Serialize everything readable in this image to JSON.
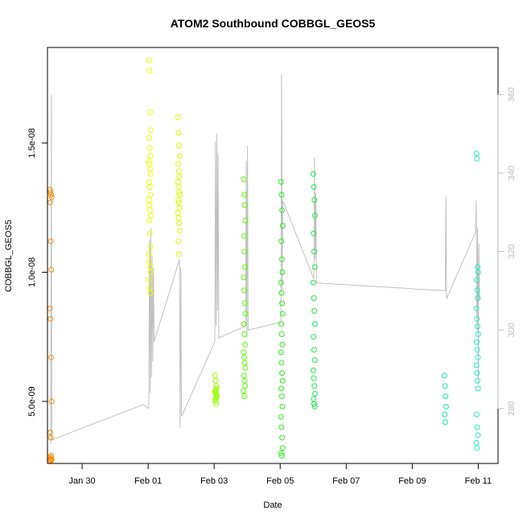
{
  "chart_data": {
    "type": "scatter",
    "title": "ATOM2 Southbound COBBGL_GEOS5",
    "xlabel": "Date",
    "ylabel": "COBBGL_GEOS5",
    "x_unit": "days since Jan 30",
    "xlim": [
      -1.05,
      12.6
    ],
    "ylim": [
      2.6e-09,
      1.87e-08
    ],
    "y2lim": [
      266,
      372
    ],
    "x_ticks": [
      {
        "value": 0,
        "label": "Jan 30"
      },
      {
        "value": 2,
        "label": "Feb 01"
      },
      {
        "value": 4,
        "label": "Feb 03"
      },
      {
        "value": 6,
        "label": "Feb 05"
      },
      {
        "value": 8,
        "label": "Feb 07"
      },
      {
        "value": 10,
        "label": "Feb 09"
      },
      {
        "value": 12,
        "label": "Feb 11"
      }
    ],
    "y_ticks": [
      {
        "value": 5e-09,
        "label": "5.0e-09"
      },
      {
        "value": 1e-08,
        "label": "1.0e-08"
      },
      {
        "value": 1.5e-08,
        "label": "1.5e-08"
      }
    ],
    "y2_ticks": [
      {
        "value": 280,
        "label": "280"
      },
      {
        "value": 300,
        "label": "300"
      },
      {
        "value": 320,
        "label": "320"
      },
      {
        "value": 340,
        "label": "340"
      },
      {
        "value": 360,
        "label": "360"
      }
    ],
    "clusters": [
      {
        "x": -0.95,
        "color": "#ff8c00",
        "y": [
          1.32e-08,
          1.31e-08,
          1.3e-08,
          1.29e-08,
          1.27e-08,
          1.12e-08,
          1.01e-08,
          8.6e-09,
          8.2e-09,
          6.7e-09,
          5e-09,
          3.8e-09,
          3.6e-09,
          2.9e-09,
          2.85e-09,
          2.8e-09,
          2.78e-09,
          2.75e-09,
          2.72e-09,
          2.7e-09
        ]
      },
      {
        "x": 2.05,
        "color": "#eaff00",
        "y": [
          1.82e-08,
          1.78e-08,
          1.62e-08,
          1.55e-08,
          1.52e-08,
          1.48e-08,
          1.45e-08,
          1.43e-08,
          1.42e-08,
          1.4e-08,
          1.38e-08,
          1.35e-08,
          1.33e-08,
          1.3e-08,
          1.28e-08,
          1.26e-08,
          1.24e-08,
          1.22e-08,
          1.2e-08,
          1.15e-08,
          1.1e-08,
          1.07e-08,
          1.04e-08,
          1.02e-08,
          1e-08,
          9.7e-09,
          9.4e-09,
          9.2e-09
        ]
      },
      {
        "x": 2.93,
        "color": "#d4ff00",
        "y": [
          1.6e-08,
          1.54e-08,
          1.49e-08,
          1.45e-08,
          1.42e-08,
          1.39e-08,
          1.37e-08,
          1.35e-08,
          1.33e-08,
          1.31e-08,
          1.3e-08,
          1.28e-08,
          1.27e-08,
          1.25e-08,
          1.23e-08,
          1.21e-08,
          1.19e-08,
          1.16e-08,
          1.12e-08,
          1.07e-08
        ]
      },
      {
        "x": 4.05,
        "color": "#9cff00",
        "y": [
          6e-09,
          5.8e-09,
          5.6e-09,
          5.5e-09,
          5.4e-09,
          5.3e-09,
          5.2e-09,
          5.1e-09,
          5e-09,
          4.9e-09,
          5.25e-09,
          5.35e-09,
          5.45e-09,
          5.15e-09
        ]
      },
      {
        "x": 4.92,
        "color": "#55ff00",
        "y": [
          1.36e-08,
          1.3e-08,
          1.26e-08,
          1.2e-08,
          1.14e-08,
          1.08e-08,
          1.02e-08,
          9.8e-09,
          9.3e-09,
          8.8e-09,
          8.4e-09,
          8e-09,
          7.6e-09,
          7.2e-09,
          6.9e-09,
          6.7e-09,
          6.5e-09,
          6.3e-09,
          6e-09,
          5.8e-09,
          5.6e-09,
          5.4e-09,
          5.2e-09
        ]
      },
      {
        "x": 6.05,
        "color": "#2bef1a",
        "y": [
          1.35e-08,
          1.3e-08,
          1.24e-08,
          1.18e-08,
          1.12e-08,
          1.05e-08,
          1e-08,
          9.6e-09,
          9.2e-09,
          8.8e-09,
          8.4e-09,
          8e-09,
          7.6e-09,
          7.2e-09,
          6.9e-09,
          6.5e-09,
          6.1e-09,
          5.8e-09,
          5.5e-09,
          5.2e-09,
          4.8e-09,
          4.4e-09,
          4e-09,
          3.6e-09,
          3.2e-09,
          3e-09,
          2.9e-09
        ]
      },
      {
        "x": 7.03,
        "color": "#1ee84a",
        "y": [
          1.38e-08,
          1.33e-08,
          1.28e-08,
          1.22e-08,
          1.15e-08,
          1.08e-08,
          1.02e-08,
          9.6e-09,
          9e-09,
          8.5e-09,
          8e-09,
          7.5e-09,
          7e-09,
          6.6e-09,
          6.2e-09,
          5.9e-09,
          5.6e-09,
          5.3e-09,
          5.1e-09,
          4.9e-09,
          4.8e-09
        ]
      },
      {
        "x": 11.0,
        "color": "#12e8a0",
        "y": [
          6e-09,
          5.6e-09,
          5.2e-09,
          4.8e-09,
          4.5e-09,
          4.2e-09
        ]
      },
      {
        "x": 11.97,
        "color": "#22f0c0",
        "y": [
          1.46e-08,
          1.44e-08,
          1.02e-08,
          1e-08,
          9.7e-09,
          9.3e-09,
          9e-09,
          8.6e-09,
          8.2e-09,
          7.9e-09,
          7.6e-09,
          7.3e-09,
          7e-09,
          6.7e-09,
          6.4e-09,
          6.1e-09,
          5.8e-09,
          5.5e-09,
          4.5e-09,
          4e-09,
          3.7e-09,
          3.4e-09,
          3.2e-09
        ]
      }
    ],
    "secondary_line": {
      "color": "#c0c0c0",
      "axis": "right",
      "points": [
        [
          -0.95,
          271
        ],
        [
          -0.93,
          360
        ],
        [
          -0.92,
          272
        ],
        [
          1.85,
          281
        ],
        [
          2.02,
          280
        ],
        [
          2.04,
          323
        ],
        [
          2.06,
          284
        ],
        [
          2.08,
          326
        ],
        [
          2.1,
          288
        ],
        [
          2.12,
          319
        ],
        [
          2.14,
          292
        ],
        [
          2.16,
          316
        ],
        [
          2.18,
          297
        ],
        [
          2.95,
          318
        ],
        [
          2.97,
          275
        ],
        [
          2.99,
          316
        ],
        [
          3.01,
          278
        ],
        [
          4.02,
          297
        ],
        [
          4.04,
          348
        ],
        [
          4.06,
          301
        ],
        [
          4.08,
          350
        ],
        [
          4.1,
          305
        ],
        [
          4.12,
          345
        ],
        [
          4.14,
          298
        ],
        [
          4.95,
          301
        ],
        [
          4.97,
          343
        ],
        [
          4.99,
          298
        ],
        [
          5.01,
          347
        ],
        [
          5.03,
          300
        ],
        [
          6.02,
          302
        ],
        [
          6.04,
          365
        ],
        [
          6.06,
          310
        ],
        [
          6.08,
          333
        ],
        [
          7.02,
          313
        ],
        [
          7.04,
          344
        ],
        [
          7.06,
          318
        ],
        [
          7.08,
          335
        ],
        [
          7.1,
          312
        ],
        [
          11.0,
          310
        ],
        [
          11.02,
          334
        ],
        [
          11.04,
          308
        ],
        [
          11.92,
          325
        ],
        [
          11.94,
          333
        ],
        [
          11.96,
          300
        ],
        [
          11.98,
          326
        ],
        [
          12.0,
          286
        ],
        [
          12.02,
          322
        ],
        [
          12.04,
          308
        ]
      ]
    }
  }
}
